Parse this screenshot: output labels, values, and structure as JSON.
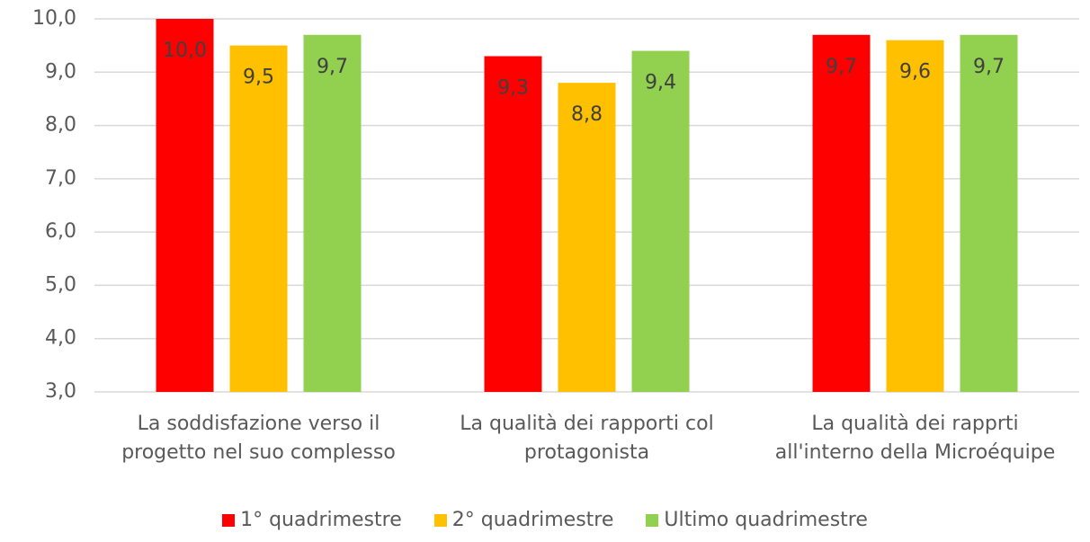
{
  "chart_data": {
    "type": "bar",
    "categories": [
      "La soddisfazione verso il progetto nel suo complesso",
      "La qualità dei rapporti col protagonista",
      "La qualità dei rapprti all'interno della Microéquipe"
    ],
    "series": [
      {
        "name": "1° quadrimestre",
        "color": "#ff0000",
        "values": [
          10.0,
          9.3,
          9.7
        ],
        "value_labels": [
          "10,0",
          "9,3",
          "9,7"
        ]
      },
      {
        "name": "2° quadrimestre",
        "color": "#ffc000",
        "values": [
          9.5,
          8.8,
          9.6
        ],
        "value_labels": [
          "9,5",
          "8,8",
          "9,6"
        ]
      },
      {
        "name": "Ultimo quadrimestre",
        "color": "#92d050",
        "values": [
          9.7,
          9.4,
          9.7
        ],
        "value_labels": [
          "9,7",
          "9,4",
          "9,7"
        ]
      }
    ],
    "ylim": [
      3,
      10
    ],
    "yticks": [
      {
        "value": 3,
        "label": "3,0"
      },
      {
        "value": 4,
        "label": "4,0"
      },
      {
        "value": 5,
        "label": "5,0"
      },
      {
        "value": 6,
        "label": "6,0"
      },
      {
        "value": 7,
        "label": "7,0"
      },
      {
        "value": 8,
        "label": "8,0"
      },
      {
        "value": 9,
        "label": "9,0"
      },
      {
        "value": 10,
        "label": "10,0"
      }
    ],
    "grid": true,
    "legend": "bottom"
  }
}
